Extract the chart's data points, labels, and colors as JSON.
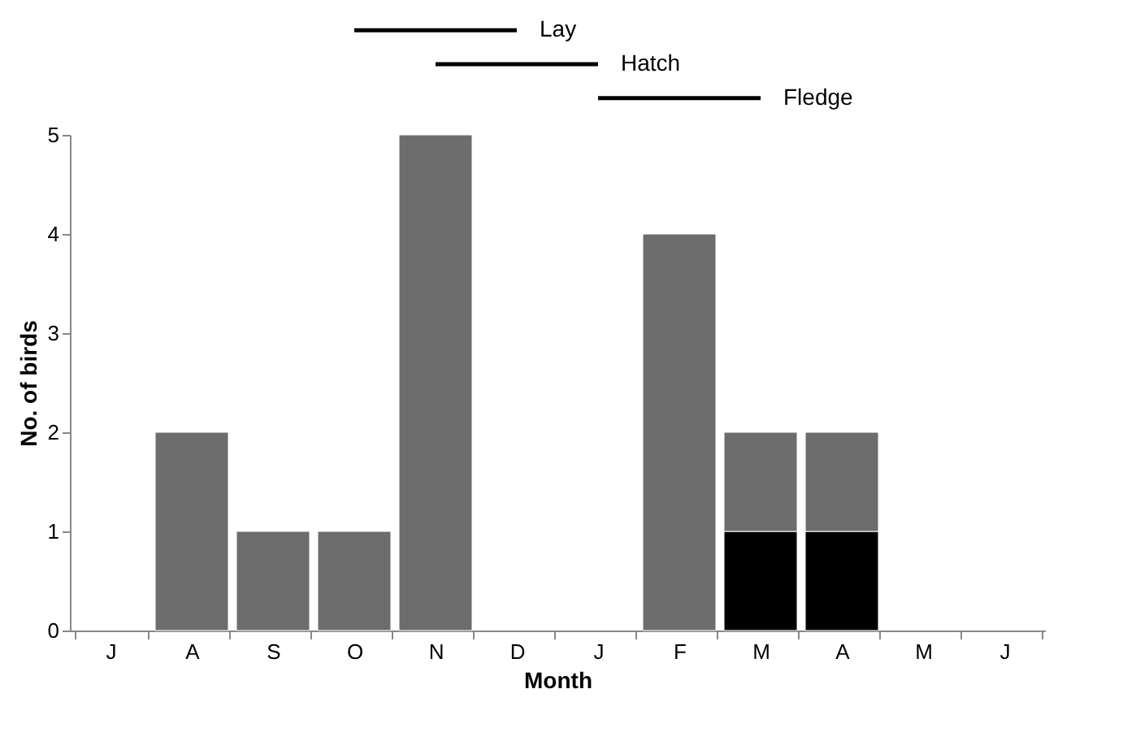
{
  "chart_data": {
    "type": "bar",
    "xlabel": "Month",
    "ylabel": "No. of birds",
    "categories": [
      "J",
      "A",
      "S",
      "O",
      "N",
      "D",
      "J",
      "F",
      "M",
      "A",
      "M",
      "J"
    ],
    "stacked": true,
    "series": [
      {
        "color": "#000000",
        "values": [
          0,
          0,
          0,
          0,
          0,
          0,
          0,
          0,
          1,
          1,
          0,
          0
        ]
      },
      {
        "color": "#6d6d6d",
        "values": [
          0,
          2,
          1,
          1,
          5,
          0,
          0,
          4,
          1,
          1,
          0,
          0
        ]
      }
    ],
    "ylim": [
      0,
      5
    ],
    "yticks": [
      0,
      1,
      2,
      3,
      4,
      5
    ],
    "grid": false,
    "annotations": [
      "Lay",
      "Hatch",
      "Fledge"
    ]
  }
}
